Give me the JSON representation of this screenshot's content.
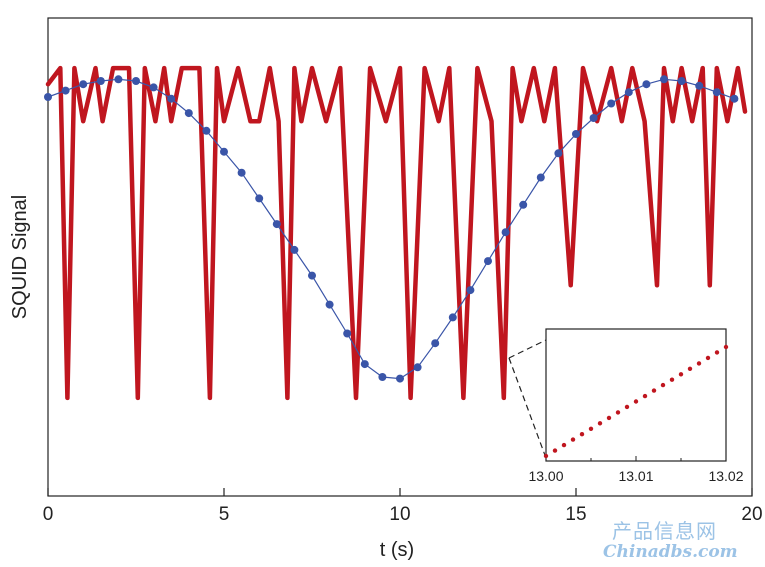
{
  "chart_data": [
    {
      "type": "line",
      "xlabel": "t (s)",
      "ylabel": "SQUID Signal",
      "xlim": [
        0,
        20
      ],
      "ylim": [
        -1.15,
        1.15
      ],
      "x_ticks": [
        "0",
        "5",
        "10",
        "15",
        "20"
      ],
      "grid": false,
      "series": [
        {
          "style": "thick red line (measured SQUID signal, unwrapping flux)",
          "color": "#c0161f",
          "x": [
            0.0,
            0.35,
            0.55,
            0.75,
            1.0,
            1.35,
            1.55,
            1.85,
            2.3,
            2.55,
            2.75,
            3.05,
            3.3,
            3.5,
            3.8,
            4.3,
            4.6,
            4.8,
            5.0,
            5.4,
            5.75,
            6.0,
            6.3,
            6.55,
            6.8,
            7.0,
            7.2,
            7.5,
            7.9,
            8.3,
            8.75,
            9.15,
            9.6,
            10.0,
            10.3,
            10.7,
            11.1,
            11.4,
            11.8,
            12.2,
            12.6,
            12.95,
            13.2,
            13.45,
            13.8,
            14.1,
            14.4,
            14.85,
            15.2,
            15.6,
            16.0,
            16.3,
            16.6,
            16.95,
            17.3,
            17.5,
            17.75,
            18.0,
            18.3,
            18.6,
            18.8,
            19.0,
            19.3,
            19.6,
            19.8
          ],
          "values": [
            0.95,
            1.05,
            -1.0,
            1.05,
            0.72,
            1.05,
            0.72,
            1.05,
            1.05,
            -1.0,
            1.05,
            0.72,
            1.05,
            0.72,
            1.05,
            1.05,
            -1.0,
            1.05,
            0.72,
            1.05,
            0.72,
            0.72,
            1.05,
            0.72,
            -1.0,
            1.05,
            0.72,
            1.05,
            0.72,
            1.05,
            -1.0,
            1.05,
            0.72,
            1.05,
            -1.0,
            1.05,
            0.72,
            1.05,
            -1.0,
            1.05,
            0.72,
            -1.0,
            1.05,
            0.72,
            1.05,
            0.72,
            1.05,
            -0.3,
            1.05,
            0.72,
            1.05,
            0.72,
            1.05,
            0.72,
            -0.3,
            1.05,
            0.72,
            1.05,
            0.72,
            1.05,
            -0.3,
            1.05,
            0.72,
            1.05,
            0.78
          ]
        },
        {
          "style": "thin blue line with blue circle markers (fit)",
          "color": "#3a55a8",
          "x": [
            0.0,
            0.5,
            1.0,
            1.5,
            2.0,
            2.5,
            3.0,
            3.5,
            4.0,
            4.5,
            5.0,
            5.5,
            6.0,
            6.5,
            7.0,
            7.5,
            8.0,
            8.5,
            9.0,
            9.5,
            10.0,
            10.5,
            11.0,
            11.5,
            12.0,
            12.5,
            13.0,
            13.5,
            14.0,
            14.5,
            15.0,
            15.5,
            16.0,
            16.5,
            17.0,
            17.5,
            18.0,
            18.5,
            19.0,
            19.5
          ],
          "values": [
            0.87,
            0.91,
            0.95,
            0.97,
            0.98,
            0.97,
            0.93,
            0.86,
            0.77,
            0.66,
            0.53,
            0.4,
            0.24,
            0.08,
            -0.08,
            -0.24,
            -0.42,
            -0.6,
            -0.79,
            -0.87,
            -0.88,
            -0.81,
            -0.66,
            -0.5,
            -0.33,
            -0.15,
            0.03,
            0.2,
            0.37,
            0.52,
            0.64,
            0.74,
            0.83,
            0.9,
            0.95,
            0.98,
            0.97,
            0.94,
            0.9,
            0.86
          ]
        }
      ]
    },
    {
      "type": "scatter",
      "title": "",
      "xlim": [
        13.0,
        13.02
      ],
      "x_ticks": [
        "13.00",
        "13.01",
        "13.02"
      ],
      "grid": false,
      "series": [
        {
          "style": "red dotted points",
          "color": "#c0161f",
          "x": [
            13.0,
            13.001,
            13.002,
            13.003,
            13.004,
            13.005,
            13.006,
            13.007,
            13.008,
            13.009,
            13.01,
            13.011,
            13.012,
            13.013,
            13.014,
            13.015,
            13.016,
            13.017,
            13.018,
            13.019,
            13.02
          ],
          "values": [
            0.0,
            0.05,
            0.1,
            0.15,
            0.2,
            0.25,
            0.3,
            0.35,
            0.4,
            0.45,
            0.5,
            0.55,
            0.6,
            0.65,
            0.7,
            0.75,
            0.8,
            0.85,
            0.9,
            0.95,
            1.0
          ]
        }
      ]
    }
  ],
  "watermark": {
    "line1": "产品信息网",
    "line2": "Chinadbs.com"
  }
}
